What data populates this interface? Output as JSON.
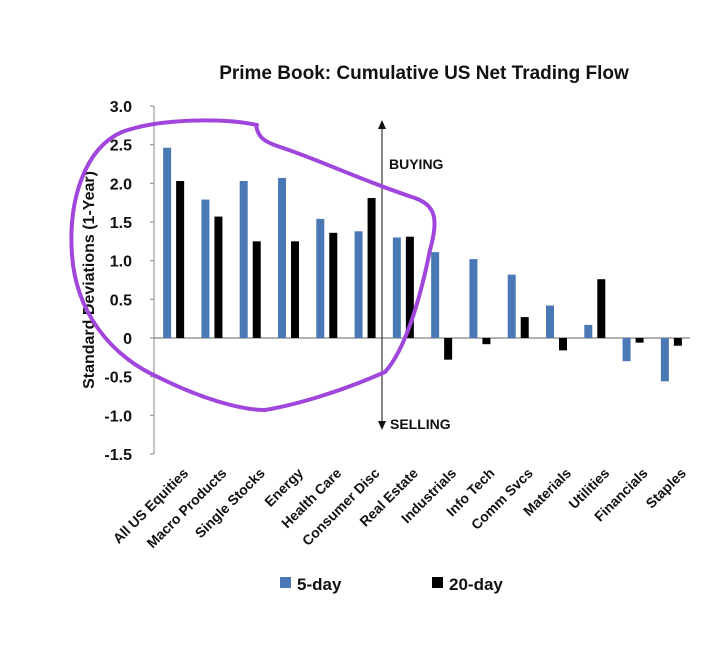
{
  "chart_data": {
    "type": "bar",
    "title": "Prime Book: Cumulative US Net Trading Flow",
    "ylabel": "Standard Deviations (1-Year)",
    "xlabel": "",
    "ylim": [
      -1.5,
      3.0
    ],
    "yticks": [
      "3.0",
      "2.5",
      "2.0",
      "1.5",
      "1.0",
      "0.5",
      "0",
      "-0.5",
      "-1.0",
      "-1.5"
    ],
    "categories": [
      "All US Equities",
      "Macro Products",
      "Single Stocks",
      "Energy",
      "Health Care",
      "Consumer Disc",
      "Real Estate",
      "Industrials",
      "Info Tech",
      "Comm Svcs",
      "Materials",
      "Utilities",
      "Financials",
      "Staples"
    ],
    "series": [
      {
        "name": "5-day",
        "color": "#4a78b5",
        "values": [
          2.46,
          1.79,
          2.03,
          2.07,
          1.54,
          1.38,
          1.3,
          1.11,
          1.02,
          0.82,
          0.42,
          0.17,
          -0.3,
          -0.56
        ]
      },
      {
        "name": "20-day",
        "color": "#000000",
        "values": [
          2.03,
          1.57,
          1.25,
          1.25,
          1.36,
          1.81,
          1.31,
          -0.28,
          -0.08,
          0.27,
          -0.16,
          0.76,
          -0.06,
          -0.1
        ]
      }
    ],
    "annotations": {
      "up": "BUYING",
      "down": "SELLING"
    },
    "legend_position": "bottom",
    "grid": false,
    "highlight_color": "#a046dc"
  }
}
